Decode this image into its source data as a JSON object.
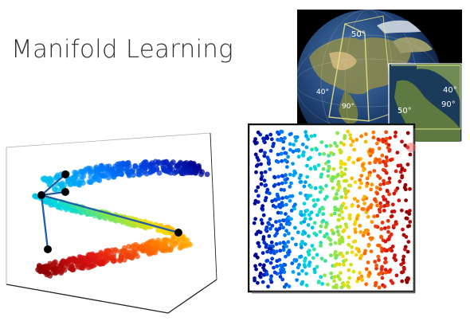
{
  "slide": {
    "title": "Manifold Learning"
  },
  "globe_figure": {
    "icon": "globe-map-icon",
    "labels": [
      "50°",
      "40°",
      "90°",
      "40°",
      "50°",
      "90°"
    ]
  },
  "s_curve_figure": {
    "icon": "s-curve-3d-scatter-icon",
    "colormap": [
      "#8b0000",
      "#ff0000",
      "#ff8c00",
      "#ffff00",
      "#7fff00",
      "#00ffff",
      "#0080ff",
      "#00008b"
    ]
  },
  "unrolled_figure": {
    "icon": "unrolled-2d-scatter-icon",
    "border_color": "#111111",
    "highlight_color": "#ff6b6b"
  }
}
